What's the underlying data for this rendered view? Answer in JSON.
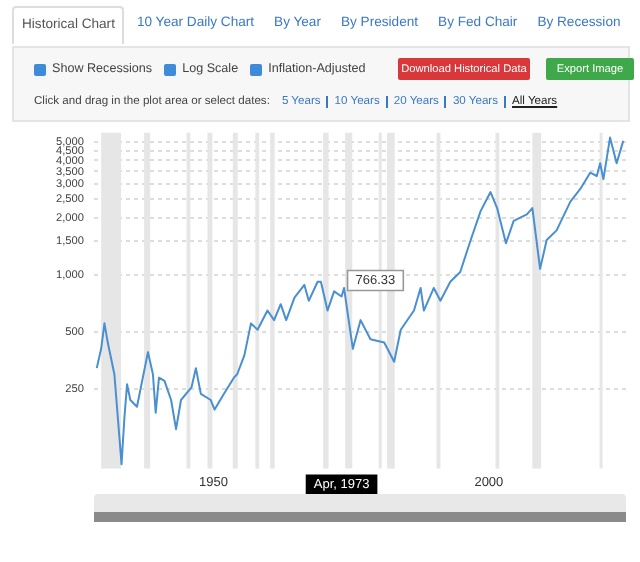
{
  "chart_data": {
    "type": "line",
    "x": [
      1928.8,
      1929.6,
      1930.2,
      1930.8,
      1932,
      1933.3,
      1933.8,
      1934.3,
      1934.9,
      1936.1,
      1938.1,
      1939,
      1939.5,
      1940.1,
      1941.1,
      1942.3,
      1943.2,
      1944.1,
      1946,
      1946.8,
      1947.7,
      1949.5,
      1950.2,
      1951.9,
      1953.7,
      1954.3,
      1955.6,
      1956.8,
      1958,
      1959.8,
      1961,
      1962.2,
      1963.2,
      1964.7,
      1966.5,
      1967.3,
      1968.9,
      1969.5,
      1970.7,
      1971.9,
      1973.25,
      1973.7,
      1975.3,
      1976.7,
      1978.5,
      1981,
      1982.8,
      1984,
      1986.4,
      1987.6,
      1988.2,
      1990,
      1991.2,
      1993,
      1994.8,
      1996.7,
      1998.5,
      2000.3,
      2001.5,
      2003.1,
      2004.5,
      2006.9,
      2007.9,
      2009.3,
      2010.5,
      2012.3,
      2014.8,
      2016.6,
      2018.4,
      2019.6,
      2020.2,
      2020.8,
      2022,
      2023.2,
      2024.4
    ],
    "values": [
      321,
      406,
      553,
      438,
      298,
      100,
      172,
      264,
      218,
      201,
      390,
      298,
      187,
      286,
      275,
      218,
      153,
      218,
      254,
      321,
      235,
      218,
      194,
      235,
      286,
      298,
      375,
      553,
      512,
      646,
      575,
      698,
      575,
      756,
      882,
      727,
      917,
      917,
      646,
      816,
      766.33,
      850,
      406,
      575,
      456,
      438,
      347,
      512,
      646,
      850,
      646,
      850,
      727,
      917,
      1031,
      1522,
      2160,
      2725,
      2243,
      1462,
      1921,
      2075,
      2243,
      1072,
      1522,
      1710,
      2426,
      2829,
      3445,
      3310,
      3866,
      3184,
      5280,
      3866,
      5070
    ],
    "color": "#4a8fd0",
    "log": true,
    "xlim": [
      1928.3,
      2024.9
    ],
    "xticks": [
      1950,
      2000
    ],
    "ylim": [
      95,
      5600
    ],
    "yticks": [
      250,
      500,
      {
        "value": 1000,
        "label": "1,000"
      },
      {
        "value": 1500,
        "label": "1,500"
      },
      {
        "value": 2000,
        "label": "2,000"
      },
      {
        "value": 2500,
        "label": "2,500"
      },
      {
        "value": 3000,
        "label": "3,000"
      },
      {
        "value": 3500,
        "label": "3,500"
      },
      {
        "value": 4000,
        "label": "4,000"
      },
      {
        "value": 4500,
        "label": "4,500"
      },
      {
        "value": 5000,
        "label": "5,000"
      }
    ],
    "grid": "y",
    "legend": false,
    "marker": "none",
    "line_style": "solid",
    "bands": [
      {
        "axis": "x",
        "from": 1929.6,
        "to": 1933.2,
        "color": "#e6e6e6"
      },
      {
        "axis": "x",
        "from": 1937.4,
        "to": 1938.5,
        "color": "#e6e6e6"
      },
      {
        "axis": "x",
        "from": 1945.1,
        "to": 1945.8,
        "color": "#e6e6e6"
      },
      {
        "axis": "x",
        "from": 1948.9,
        "to": 1949.8,
        "color": "#e6e6e6"
      },
      {
        "axis": "x",
        "from": 1953.5,
        "to": 1954.4,
        "color": "#e6e6e6"
      },
      {
        "axis": "x",
        "from": 1957.6,
        "to": 1958.3,
        "color": "#e6e6e6"
      },
      {
        "axis": "x",
        "from": 1960.3,
        "to": 1961.1,
        "color": "#e6e6e6"
      },
      {
        "axis": "x",
        "from": 1969.9,
        "to": 1970.9,
        "color": "#e6e6e6"
      },
      {
        "axis": "x",
        "from": 1973.9,
        "to": 1975.2,
        "color": "#e6e6e6"
      },
      {
        "axis": "x",
        "from": 1980.0,
        "to": 1980.5,
        "color": "#e6e6e6"
      },
      {
        "axis": "x",
        "from": 1981.5,
        "to": 1982.9,
        "color": "#e6e6e6"
      },
      {
        "axis": "x",
        "from": 1990.5,
        "to": 1991.2,
        "color": "#e6e6e6"
      },
      {
        "axis": "x",
        "from": 2001.2,
        "to": 2001.9,
        "color": "#e6e6e6"
      },
      {
        "axis": "x",
        "from": 2007.9,
        "to": 2009.5,
        "color": "#e6e6e6"
      },
      {
        "axis": "x",
        "from": 2020.1,
        "to": 2020.3,
        "color": "#e6e6e6"
      }
    ],
    "annotations": [
      {
        "text": "766.33",
        "x": 1973.25,
        "y": 766.33
      },
      "Apr, 1973",
      "Historical Chart",
      "10 Year Daily Chart",
      "By Year",
      "By President",
      "By Fed Chair",
      "By Recession",
      "Show Recessions",
      "Log Scale",
      "Inflation-Adjusted",
      "Download Historical Data",
      "Export Image",
      "Click and drag in the plot area or select dates:",
      "5 Years",
      "10 Years",
      "20 Years",
      "30 Years",
      "All Years"
    ]
  }
}
